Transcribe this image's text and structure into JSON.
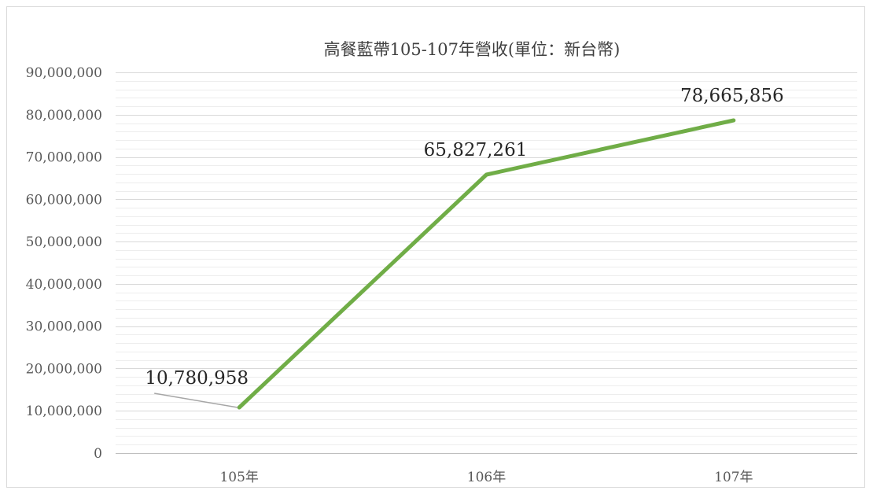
{
  "chart_data": {
    "type": "line",
    "title": "高餐藍帶105-107年營收(單位：新台幣)",
    "categories": [
      "105年",
      "106年",
      "107年"
    ],
    "series": [
      {
        "values": [
          10780958,
          65827261,
          78665856
        ]
      }
    ],
    "data_labels": [
      "10,780,958",
      "65,827,261",
      "78,665,856"
    ],
    "y_tick_labels": [
      "0",
      "10,000,000",
      "20,000,000",
      "30,000,000",
      "40,000,000",
      "50,000,000",
      "60,000,000",
      "70,000,000",
      "80,000,000",
      "90,000,000"
    ],
    "ylim": [
      0,
      90000000
    ],
    "y_major_step": 10000000,
    "y_minor_step": 2000000,
    "grid": true,
    "legend": "none",
    "colors": {
      "line": "#70ad47",
      "major_grid": "#d9d9d9",
      "minor_grid": "#ededed",
      "axis": "#bfbfbf",
      "leader": "#a6a6a6"
    }
  }
}
